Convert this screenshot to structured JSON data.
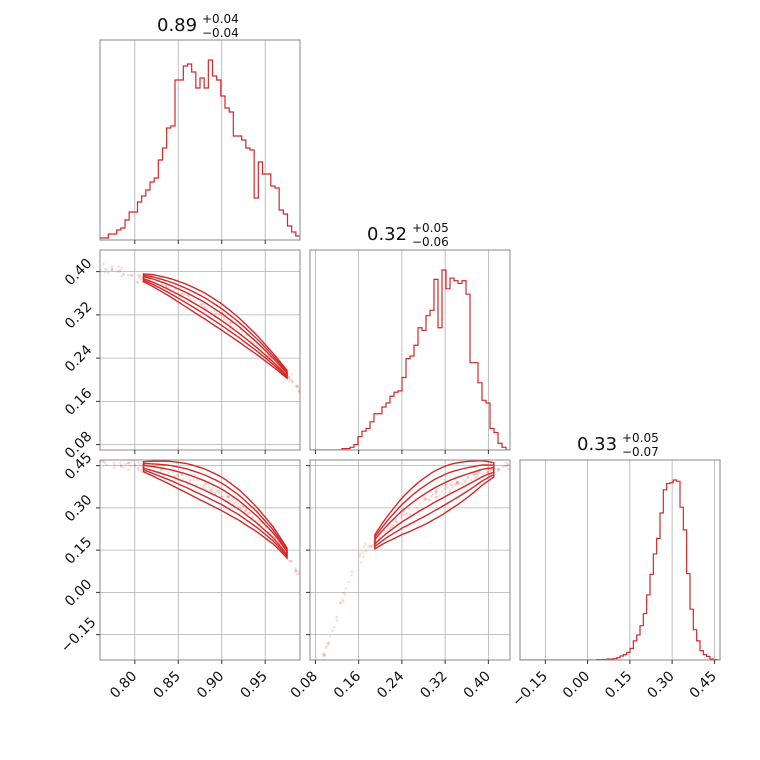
{
  "chart_data": {
    "type": "corner",
    "color": "#d62728",
    "grid": true,
    "variables": [
      {
        "range": [
          0.76,
          0.99
        ],
        "ticks": [
          "0.80",
          "0.85",
          "0.90",
          "0.95"
        ],
        "tick_values": [
          0.8,
          0.85,
          0.9,
          0.95
        ]
      },
      {
        "range": [
          0.07,
          0.44
        ],
        "ticks": [
          "0.08",
          "0.16",
          "0.24",
          "0.32",
          "0.40"
        ],
        "tick_values": [
          0.08,
          0.16,
          0.24,
          0.32,
          0.4
        ]
      },
      {
        "range": [
          -0.24,
          0.47
        ],
        "ticks": [
          "−0.15",
          "0.00",
          "0.15",
          "0.30",
          "0.45"
        ],
        "tick_values": [
          -0.15,
          0.0,
          0.15,
          0.3,
          0.45
        ]
      }
    ],
    "titles": [
      {
        "value": "0.89",
        "plus": "+0.04",
        "minus": "−0.04"
      },
      {
        "value": "0.32",
        "plus": "+0.05",
        "minus": "−0.06"
      },
      {
        "value": "0.33",
        "plus": "+0.05",
        "minus": "−0.07"
      }
    ],
    "histograms": [
      {
        "edges": [
          0.76,
          0.99
        ],
        "counts": [
          1,
          1,
          3,
          3,
          5,
          6,
          10,
          14,
          14,
          19,
          22,
          25,
          29,
          31,
          40,
          46,
          56,
          57,
          80,
          80,
          87,
          88,
          84,
          76,
          81,
          76,
          90,
          82,
          80,
          72,
          66,
          64,
          52,
          52,
          50,
          46,
          45,
          21,
          39,
          33,
          33,
          27,
          26,
          15,
          13,
          7,
          4,
          2
        ]
      },
      {
        "edges": [
          0.07,
          0.44
        ],
        "counts": [
          0,
          0,
          0,
          0,
          0,
          0,
          0,
          0,
          1,
          1,
          2,
          4,
          10,
          14,
          16,
          21,
          27,
          27,
          32,
          35,
          40,
          43,
          44,
          54,
          68,
          70,
          78,
          91,
          89,
          100,
          104,
          127,
          91,
          134,
          120,
          128,
          126,
          124,
          126,
          116,
          65,
          65,
          50,
          37,
          35,
          16,
          13,
          5,
          2,
          0
        ]
      },
      {
        "edges": [
          -0.24,
          0.47
        ],
        "counts": [
          0,
          0,
          0,
          0,
          0,
          0,
          0,
          0,
          0,
          0,
          0,
          0,
          0,
          0,
          0,
          0,
          0,
          0,
          0,
          0,
          0,
          0,
          0,
          1,
          1,
          1,
          2,
          2,
          3,
          5,
          9,
          12,
          17,
          26,
          43,
          56,
          77,
          104,
          146,
          192,
          238,
          273,
          330,
          382,
          396,
          398,
          404,
          401,
          343,
          292,
          194,
          114,
          68,
          43,
          21,
          12,
          8,
          2,
          1,
          0
        ]
      }
    ],
    "pairs": [
      {
        "row": 1,
        "col": 0,
        "curve": [
          [
            0.755,
            0.41
          ],
          [
            0.78,
            0.4
          ],
          [
            0.8,
            0.393
          ],
          [
            0.82,
            0.384
          ],
          [
            0.84,
            0.371
          ],
          [
            0.86,
            0.355
          ],
          [
            0.88,
            0.337
          ],
          [
            0.9,
            0.316
          ],
          [
            0.92,
            0.292
          ],
          [
            0.94,
            0.265
          ],
          [
            0.96,
            0.235
          ],
          [
            0.975,
            0.21
          ],
          [
            0.99,
            0.18
          ],
          [
            1.0,
            0.16
          ]
        ],
        "core": [
          0.81,
          0.975
        ],
        "widths": [
          0.003,
          0.007,
          0.011
        ]
      },
      {
        "row": 2,
        "col": 0,
        "curve": [
          [
            0.755,
            0.47
          ],
          [
            0.78,
            0.462
          ],
          [
            0.8,
            0.452
          ],
          [
            0.82,
            0.44
          ],
          [
            0.84,
            0.425
          ],
          [
            0.86,
            0.405
          ],
          [
            0.88,
            0.38
          ],
          [
            0.9,
            0.35
          ],
          [
            0.92,
            0.31
          ],
          [
            0.94,
            0.26
          ],
          [
            0.96,
            0.2
          ],
          [
            0.975,
            0.14
          ],
          [
            0.99,
            0.05
          ],
          [
            1.0,
            -0.05
          ]
        ],
        "core": [
          0.81,
          0.975
        ],
        "widths": [
          0.004,
          0.009,
          0.014
        ]
      },
      {
        "row": 2,
        "col": 1,
        "curve": [
          [
            0.09,
            -0.24
          ],
          [
            0.11,
            -0.15
          ],
          [
            0.13,
            -0.02
          ],
          [
            0.15,
            0.08
          ],
          [
            0.17,
            0.14
          ],
          [
            0.19,
            0.18
          ],
          [
            0.21,
            0.22
          ],
          [
            0.24,
            0.27
          ],
          [
            0.27,
            0.31
          ],
          [
            0.3,
            0.345
          ],
          [
            0.33,
            0.375
          ],
          [
            0.36,
            0.4
          ],
          [
            0.39,
            0.425
          ],
          [
            0.41,
            0.435
          ],
          [
            0.43,
            0.445
          ],
          [
            0.45,
            0.455
          ]
        ],
        "core": [
          0.19,
          0.41
        ],
        "widths": [
          0.006,
          0.013,
          0.02
        ]
      }
    ]
  }
}
